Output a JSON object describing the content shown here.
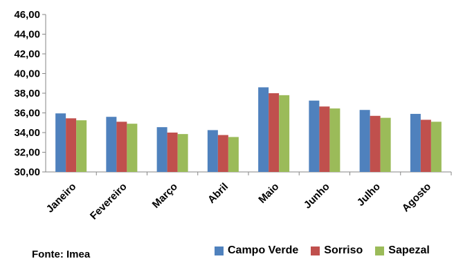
{
  "chart_data": {
    "type": "bar",
    "title": "",
    "xlabel": "",
    "ylabel": "",
    "ylim": [
      30,
      46
    ],
    "yticks": [
      "30,00",
      "32,00",
      "34,00",
      "36,00",
      "38,00",
      "40,00",
      "42,00",
      "44,00",
      "46,00"
    ],
    "categories": [
      "Janeiro",
      "Fevereiro",
      "Março",
      "Abril",
      "Maio",
      "Junho",
      "Julho",
      "Agosto"
    ],
    "series": [
      {
        "name": "Campo Verde",
        "color": "#4f81bd",
        "values": [
          35.95,
          35.6,
          34.55,
          34.25,
          38.6,
          37.25,
          36.3,
          35.9
        ]
      },
      {
        "name": "Sorriso",
        "color": "#c0504d",
        "values": [
          35.45,
          35.1,
          34.0,
          33.75,
          38.0,
          36.65,
          35.7,
          35.3
        ]
      },
      {
        "name": "Sapezal",
        "color": "#9bbb59",
        "values": [
          35.25,
          34.9,
          33.85,
          33.55,
          37.8,
          36.45,
          35.5,
          35.1
        ]
      }
    ],
    "grid": false,
    "legend": "bottom"
  },
  "source": "Fonte: Imea"
}
